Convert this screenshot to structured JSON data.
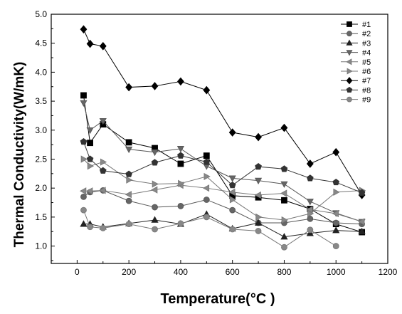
{
  "chart_data": {
    "type": "line",
    "xlabel": "Temperature(°C )",
    "ylabel": "Thermal Conductivity(W/mK)",
    "xlim": [
      -100,
      1200
    ],
    "ylim": [
      0.7,
      5.0
    ],
    "x_ticks": [
      0,
      200,
      400,
      600,
      800,
      1000,
      1200
    ],
    "y_ticks": [
      1.0,
      1.5,
      2.0,
      2.5,
      3.0,
      3.5,
      4.0,
      4.5,
      5.0
    ],
    "x_tick_labels": [
      "0",
      "200",
      "400",
      "600",
      "800",
      "1000",
      "1200"
    ],
    "y_tick_labels": [
      "1.0",
      "1.5",
      "2.0",
      "2.5",
      "3.0",
      "3.5",
      "4.0",
      "4.5",
      "5.0"
    ],
    "legend_position": "top-right",
    "grid": false,
    "series": [
      {
        "name": "#1",
        "marker": "square",
        "color": "#000000",
        "fill": "#000000",
        "x": [
          25,
          50,
          100,
          200,
          300,
          400,
          500,
          600,
          700,
          800,
          900,
          1000,
          1100
        ],
        "y": [
          3.6,
          2.78,
          3.1,
          2.79,
          2.69,
          2.42,
          2.56,
          1.87,
          1.84,
          1.79,
          1.64,
          1.38,
          1.24
        ]
      },
      {
        "name": "#2",
        "marker": "circle",
        "color": "#555555",
        "fill": "#666666",
        "x": [
          25,
          50,
          100,
          200,
          300,
          400,
          500,
          600,
          700,
          800,
          900,
          1000,
          1100
        ],
        "y": [
          1.85,
          1.93,
          1.96,
          1.78,
          1.67,
          1.69,
          1.8,
          1.62,
          1.4,
          1.4,
          1.47,
          1.4,
          1.38
        ]
      },
      {
        "name": "#3",
        "marker": "triangle-up",
        "color": "#222222",
        "fill": "#222222",
        "x": [
          25,
          50,
          100,
          200,
          300,
          400,
          500,
          600,
          700,
          800,
          900,
          1000,
          1100
        ],
        "y": [
          1.38,
          1.38,
          1.33,
          1.39,
          1.45,
          1.38,
          1.55,
          1.3,
          1.4,
          1.16,
          1.22,
          1.27,
          1.25
        ]
      },
      {
        "name": "#4",
        "marker": "triangle-down",
        "color": "#555555",
        "fill": "#666666",
        "x": [
          25,
          50,
          100,
          200,
          300,
          400,
          500,
          600,
          700,
          800,
          900,
          1000,
          1100
        ],
        "y": [
          3.47,
          3.0,
          3.16,
          2.67,
          2.62,
          2.68,
          2.38,
          2.17,
          2.13,
          2.07,
          1.77,
          1.57,
          1.42
        ]
      },
      {
        "name": "#5",
        "marker": "triangle-left",
        "color": "#777777",
        "fill": "#888888",
        "x": [
          25,
          50,
          100,
          200,
          300,
          400,
          500,
          600,
          700,
          800,
          900,
          1000,
          1100
        ],
        "y": [
          1.95,
          1.95,
          1.96,
          1.89,
          1.97,
          2.05,
          2.0,
          1.93,
          1.88,
          1.91,
          1.63,
          1.56,
          1.42
        ]
      },
      {
        "name": "#6",
        "marker": "triangle-right",
        "color": "#777777",
        "fill": "#888888",
        "x": [
          25,
          50,
          100,
          200,
          300,
          400,
          500,
          600,
          700,
          800,
          900,
          1000,
          1100
        ],
        "y": [
          2.5,
          2.38,
          2.45,
          2.14,
          2.07,
          2.08,
          2.2,
          1.8,
          1.5,
          1.45,
          1.56,
          1.93,
          1.96
        ]
      },
      {
        "name": "#7",
        "marker": "diamond",
        "color": "#000000",
        "fill": "#000000",
        "x": [
          25,
          50,
          100,
          200,
          300,
          400,
          500,
          600,
          700,
          800,
          900,
          1000,
          1100
        ],
        "y": [
          4.74,
          4.49,
          4.45,
          3.74,
          3.76,
          3.84,
          3.69,
          2.96,
          2.88,
          3.04,
          2.42,
          2.62,
          1.88
        ]
      },
      {
        "name": "#8",
        "marker": "pentagon",
        "color": "#333333",
        "fill": "#333333",
        "x": [
          25,
          50,
          100,
          200,
          300,
          400,
          500,
          600,
          700,
          800,
          900,
          1000,
          1100
        ],
        "y": [
          2.8,
          2.5,
          2.3,
          2.24,
          2.44,
          2.56,
          2.45,
          2.05,
          2.37,
          2.33,
          2.17,
          2.1,
          1.92
        ]
      },
      {
        "name": "#9",
        "marker": "circle",
        "color": "#777777",
        "fill": "#888888",
        "x": [
          25,
          50,
          100,
          200,
          300,
          400,
          500,
          600,
          700,
          800,
          900,
          1000
        ],
        "y": [
          1.62,
          1.33,
          1.31,
          1.38,
          1.29,
          1.39,
          1.5,
          1.29,
          1.26,
          0.98,
          1.28,
          1.0
        ]
      }
    ]
  }
}
